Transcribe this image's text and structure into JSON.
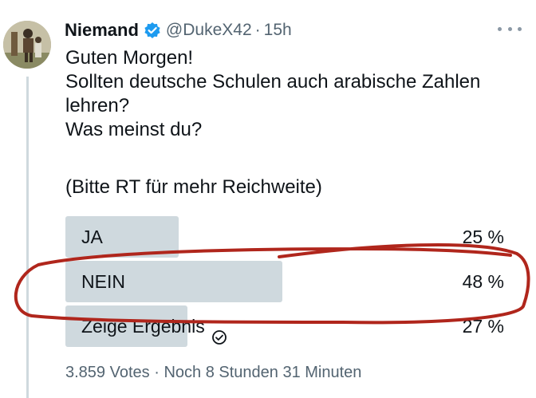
{
  "author": {
    "name": "Niemand",
    "handle": "@DukeX42",
    "separator": "·",
    "time": "15h"
  },
  "tweet": {
    "lines": [
      "Guten Morgen!",
      "Sollten deutsche Schulen auch arabische Zahlen",
      "lehren?",
      "Was meinst du?"
    ],
    "tail": "(Bitte RT für mehr Reichweite)"
  },
  "poll": {
    "options": [
      {
        "label": "JA",
        "percent_text": "25 %",
        "percent": 25
      },
      {
        "label": "NEIN",
        "percent_text": "48 %",
        "percent": 48
      },
      {
        "label": "Zeige Ergebnis",
        "percent_text": "27 %",
        "percent": 27
      }
    ],
    "votes": "3.859 Votes",
    "separator": "·",
    "remaining": "Noch 8 Stunden 31 Minuten"
  },
  "colors": {
    "verified": "#1d9bf0",
    "bar": "#cfd9de",
    "annotation": "#b0261c",
    "secondary_text": "#536471"
  },
  "icons": {
    "verified": "verified-badge-icon",
    "more": "more-dots-icon",
    "check": "check-circle-icon"
  }
}
